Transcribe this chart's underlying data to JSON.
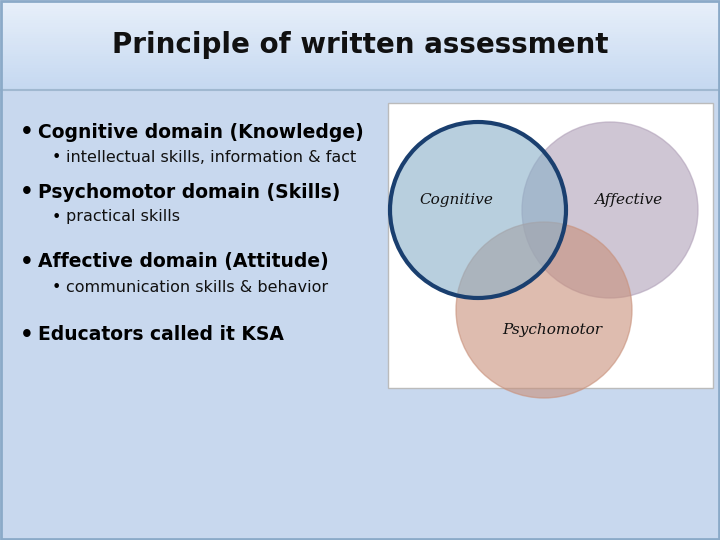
{
  "title": "Principle of written assessment",
  "title_fontsize": 20,
  "title_bg_top": "#c5d8f0",
  "title_bg_bottom": "#e8f0fa",
  "body_bg_color": "#c8d8ee",
  "bullet1_main": "Cognitive domain (Knowledge)",
  "bullet1_sub": "intellectual skills, information & fact",
  "bullet2_main": "Psychomotor domain (Skills)",
  "bullet2_sub": "practical skills",
  "bullet3_main": "Affective domain (Attitude)",
  "bullet3_sub": "communication skills & behavior",
  "bullet4_main": "Educators called it KSA",
  "venn_cognitive_color": "#8ab0c8",
  "venn_affective_color": "#b0a0b8",
  "venn_psychomotor_color": "#c8907a",
  "venn_cognitive_label": "Cognitive",
  "venn_affective_label": "Affective",
  "venn_psychomotor_label": "Psychomotor",
  "venn_box_bg": "#ffffff",
  "venn_outline_color": "#1a3f6f",
  "separator_color": "#a0b8d0",
  "text_color": "#000000",
  "sub_text_color": "#111111"
}
